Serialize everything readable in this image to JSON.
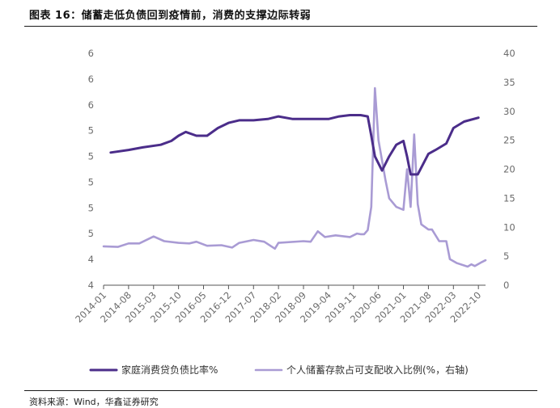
{
  "figure": {
    "title": "图表 16：储蓄走低负债回到疫情前，消费的支撑边际转弱",
    "source": "资料来源：Wind，华鑫证券研究"
  },
  "colors": {
    "left_series": "#4b2d8a",
    "right_series": "#a99bd4",
    "axis": "#555555",
    "tick_text": "#6b6b6b"
  },
  "chart_data": {
    "type": "line",
    "left_axis": {
      "tick_labels": [
        "4",
        "4",
        "5",
        "5",
        "5",
        "5",
        "5",
        "6",
        "6",
        "6"
      ],
      "ylim": [
        0,
        9
      ]
    },
    "right_axis": {
      "tick_labels": [
        "0",
        "5",
        "10",
        "15",
        "20",
        "25",
        "30",
        "35",
        "40"
      ],
      "ylim": [
        0,
        40
      ]
    },
    "x_tick_labels": [
      "2014-01",
      "2014-08",
      "2015-03",
      "2015-10",
      "2016-05",
      "2016-12",
      "2017-07",
      "2018-02",
      "2018-09",
      "2019-04",
      "2019-11",
      "2020-06",
      "2021-01",
      "2021-08",
      "2022-03",
      "2022-10"
    ],
    "x_range": [
      "2014-01",
      "2022-12"
    ],
    "grid": false,
    "legend_position": "bottom",
    "series": [
      {
        "name": "家庭消费贷负债比率%",
        "axis": "left",
        "points": [
          [
            "2014-03",
            5.15
          ],
          [
            "2014-08",
            5.25
          ],
          [
            "2014-12",
            5.35
          ],
          [
            "2015-05",
            5.45
          ],
          [
            "2015-08",
            5.6
          ],
          [
            "2015-10",
            5.8
          ],
          [
            "2015-12",
            5.95
          ],
          [
            "2016-03",
            5.8
          ],
          [
            "2016-06",
            5.8
          ],
          [
            "2016-09",
            6.1
          ],
          [
            "2016-12",
            6.3
          ],
          [
            "2017-03",
            6.4
          ],
          [
            "2017-07",
            6.4
          ],
          [
            "2017-11",
            6.45
          ],
          [
            "2018-02",
            6.55
          ],
          [
            "2018-06",
            6.45
          ],
          [
            "2018-09",
            6.45
          ],
          [
            "2019-01",
            6.45
          ],
          [
            "2019-04",
            6.45
          ],
          [
            "2019-07",
            6.55
          ],
          [
            "2019-10",
            6.6
          ],
          [
            "2020-01",
            6.6
          ],
          [
            "2020-03",
            6.55
          ],
          [
            "2020-04",
            5.8
          ],
          [
            "2020-05",
            5.0
          ],
          [
            "2020-07",
            4.45
          ],
          [
            "2020-09",
            5.0
          ],
          [
            "2020-11",
            5.45
          ],
          [
            "2021-01",
            5.6
          ],
          [
            "2021-02",
            5.0
          ],
          [
            "2021-03",
            4.3
          ],
          [
            "2021-05",
            4.3
          ],
          [
            "2021-08",
            5.1
          ],
          [
            "2021-10",
            5.25
          ],
          [
            "2022-01",
            5.5
          ],
          [
            "2022-03",
            6.1
          ],
          [
            "2022-06",
            6.35
          ],
          [
            "2022-10",
            6.5
          ]
        ]
      },
      {
        "name": "个人储蓄存款占可支配收入比例(%，右轴)",
        "axis": "right",
        "points": [
          [
            "2014-01",
            6.7
          ],
          [
            "2014-05",
            6.6
          ],
          [
            "2014-08",
            7.2
          ],
          [
            "2014-11",
            7.2
          ],
          [
            "2015-03",
            8.4
          ],
          [
            "2015-06",
            7.6
          ],
          [
            "2015-10",
            7.3
          ],
          [
            "2016-01",
            7.2
          ],
          [
            "2016-03",
            7.5
          ],
          [
            "2016-06",
            6.8
          ],
          [
            "2016-10",
            6.9
          ],
          [
            "2017-01",
            6.5
          ],
          [
            "2017-03",
            7.3
          ],
          [
            "2017-07",
            7.8
          ],
          [
            "2017-10",
            7.5
          ],
          [
            "2018-01",
            6.3
          ],
          [
            "2018-02",
            7.3
          ],
          [
            "2018-09",
            7.6
          ],
          [
            "2018-11",
            7.5
          ],
          [
            "2019-01",
            9.3
          ],
          [
            "2019-03",
            8.3
          ],
          [
            "2019-06",
            8.6
          ],
          [
            "2019-10",
            8.3
          ],
          [
            "2019-12",
            8.9
          ],
          [
            "2020-01",
            8.8
          ],
          [
            "2020-02",
            8.8
          ],
          [
            "2020-03",
            9.5
          ],
          [
            "2020-04",
            13.5
          ],
          [
            "2020-05",
            34.0
          ],
          [
            "2020-06",
            25.0
          ],
          [
            "2020-08",
            18.0
          ],
          [
            "2020-09",
            15.0
          ],
          [
            "2020-11",
            13.5
          ],
          [
            "2021-01",
            13.0
          ],
          [
            "2021-02",
            20.0
          ],
          [
            "2021-03",
            13.5
          ],
          [
            "2021-04",
            26.0
          ],
          [
            "2021-05",
            14.0
          ],
          [
            "2021-06",
            10.5
          ],
          [
            "2021-08",
            9.6
          ],
          [
            "2021-09",
            9.6
          ],
          [
            "2021-11",
            7.6
          ],
          [
            "2022-01",
            7.6
          ],
          [
            "2022-02",
            4.5
          ],
          [
            "2022-04",
            3.8
          ],
          [
            "2022-07",
            3.2
          ],
          [
            "2022-08",
            3.6
          ],
          [
            "2022-09",
            3.3
          ],
          [
            "2022-11",
            4.0
          ],
          [
            "2022-12",
            4.3
          ]
        ]
      }
    ]
  }
}
